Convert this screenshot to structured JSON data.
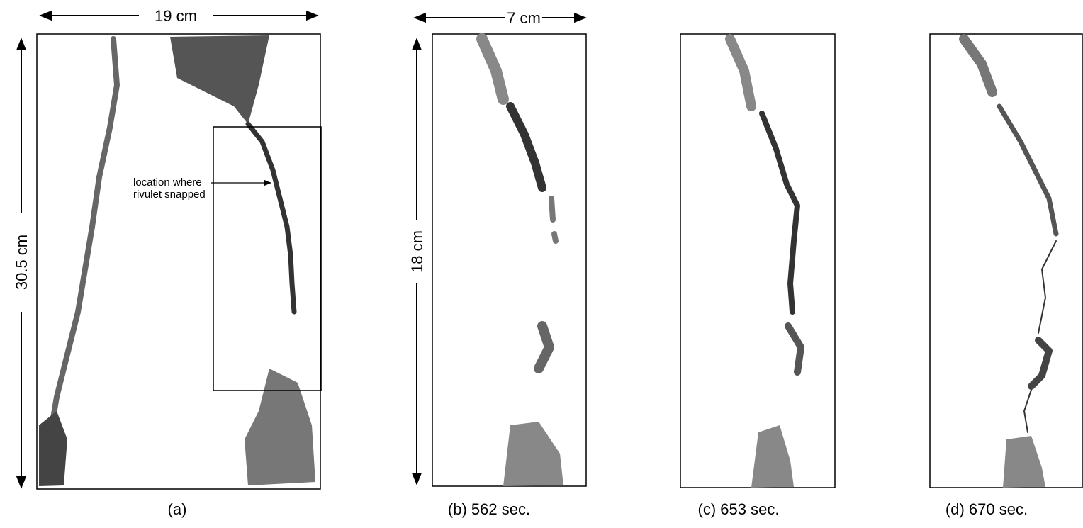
{
  "panels": [
    {
      "caption": "(a)",
      "width_label": "19 cm",
      "height_label": "30.5 cm",
      "annotation": [
        "location where",
        "rivulet snapped"
      ]
    },
    {
      "caption": "(b) 562 sec.",
      "width_label": "7 cm",
      "height_label": "18 cm"
    },
    {
      "caption": "(c) 653 sec."
    },
    {
      "caption": "(d) 670 sec."
    }
  ]
}
